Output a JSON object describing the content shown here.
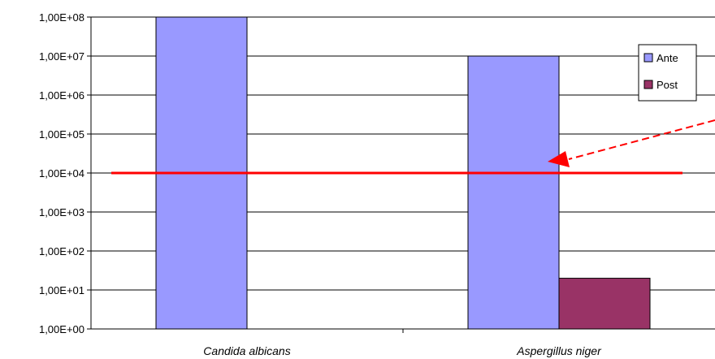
{
  "chart_data": {
    "type": "bar",
    "y_scale": "log10",
    "categories": [
      "Candida albicans",
      "Aspergillus niger"
    ],
    "series": [
      {
        "name": "Ante",
        "color": "#9999FF",
        "values": [
          100000000,
          10000000
        ]
      },
      {
        "name": "Post",
        "color": "#993366",
        "values": [
          null,
          20
        ]
      }
    ],
    "y_ticks": [
      "1,00E+00",
      "1,00E+01",
      "1,00E+02",
      "1,00E+03",
      "1,00E+04",
      "1,00E+05",
      "1,00E+06",
      "1,00E+07",
      "1,00E+08"
    ],
    "ylim": [
      1,
      100000000
    ],
    "grid": true,
    "legend": "right",
    "title": "",
    "xlabel": "",
    "ylabel": "",
    "annotations": {
      "threshold_line": {
        "value": 10000,
        "color": "#FF0000"
      },
      "arrow": {
        "color": "#FF0000",
        "style": "dashed",
        "target": "Aspergillus niger"
      }
    }
  }
}
